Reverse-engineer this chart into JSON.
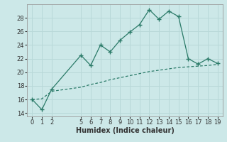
{
  "xlabel": "Humidex (Indice chaleur)",
  "background_color": "#cce8e8",
  "line_color": "#2a7a68",
  "grid_color": "#b8d8d8",
  "x_line1": [
    0,
    1,
    2,
    5,
    6,
    7,
    8,
    9,
    10,
    11,
    12,
    13,
    14,
    15,
    16,
    17,
    18,
    19
  ],
  "y_line1": [
    16,
    14.5,
    17.5,
    22.5,
    21,
    24,
    23,
    24.7,
    25.9,
    27,
    29.2,
    27.8,
    29,
    28.2,
    22,
    21.2,
    22,
    21.3
  ],
  "x_line2": [
    0,
    1,
    2,
    5,
    6,
    7,
    8,
    9,
    10,
    11,
    12,
    13,
    14,
    15,
    16,
    17,
    18,
    19
  ],
  "y_line2": [
    16,
    16.1,
    17.2,
    17.8,
    18.2,
    18.5,
    18.9,
    19.2,
    19.5,
    19.8,
    20.1,
    20.3,
    20.5,
    20.7,
    20.8,
    20.9,
    21.0,
    21.15
  ],
  "xlim": [
    -0.5,
    19.5
  ],
  "ylim": [
    13.5,
    30
  ],
  "yticks": [
    14,
    16,
    18,
    20,
    22,
    24,
    26,
    28
  ],
  "xticks": [
    0,
    1,
    2,
    5,
    6,
    7,
    8,
    9,
    10,
    11,
    12,
    13,
    14,
    15,
    16,
    17,
    18,
    19
  ],
  "fontsize_label": 7,
  "fontsize_tick": 6
}
